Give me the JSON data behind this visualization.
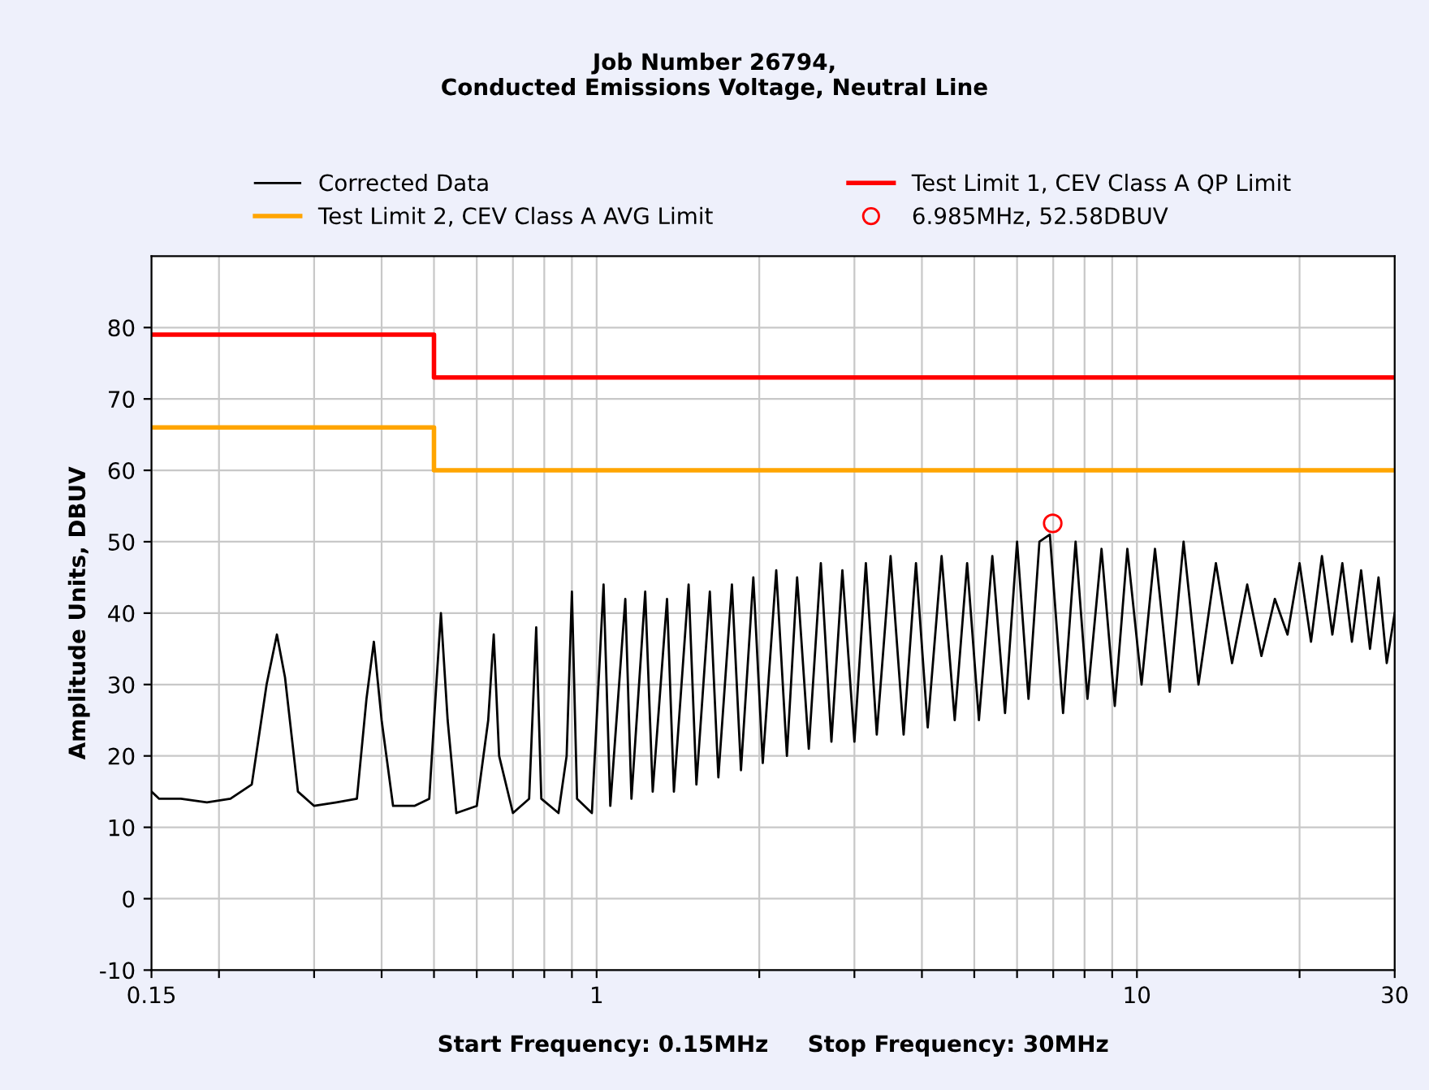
{
  "chart_data": {
    "type": "line",
    "title": "Job Number 26794,\nConducted Emissions Voltage, Neutral Line",
    "xlabel": "Start Frequency: 0.15MHz     Stop Frequency: 30MHz",
    "ylabel": "Amplitude Units, DBUV",
    "log": "x",
    "xlim": [
      0.15,
      30
    ],
    "xticks": [
      0.15,
      {
        "value": 0.2,
        "label": null
      },
      {
        "value": 0.3,
        "label": null
      },
      {
        "value": 0.4,
        "label": null
      },
      {
        "value": 0.5,
        "label": null
      },
      {
        "value": 0.6,
        "label": null
      },
      {
        "value": 0.7,
        "label": null
      },
      {
        "value": 0.8,
        "label": null
      },
      {
        "value": 0.9,
        "label": null
      },
      1,
      {
        "value": 2,
        "label": null
      },
      {
        "value": 3,
        "label": null
      },
      {
        "value": 4,
        "label": null
      },
      {
        "value": 5,
        "label": null
      },
      {
        "value": 6,
        "label": null
      },
      {
        "value": 7,
        "label": null
      },
      {
        "value": 8,
        "label": null
      },
      {
        "value": 9,
        "label": null
      },
      10,
      {
        "value": 20,
        "label": null
      },
      30
    ],
    "ylim": [
      -10,
      90
    ],
    "yticks": [
      -10,
      0,
      10,
      20,
      30,
      40,
      50,
      60,
      70,
      80
    ],
    "grid": true,
    "legend": "top",
    "series": [
      {
        "name": "Corrected Data",
        "color": "#000000",
        "x": [
          0.15,
          0.155,
          0.17,
          0.19,
          0.21,
          0.23,
          0.245,
          0.256,
          0.265,
          0.28,
          0.3,
          0.33,
          0.36,
          0.375,
          0.387,
          0.4,
          0.42,
          0.46,
          0.49,
          0.505,
          0.515,
          0.53,
          0.55,
          0.6,
          0.63,
          0.645,
          0.66,
          0.7,
          0.75,
          0.773,
          0.79,
          0.85,
          0.88,
          0.9,
          0.92,
          0.98,
          1.03,
          1.06,
          1.13,
          1.16,
          1.23,
          1.27,
          1.35,
          1.39,
          1.48,
          1.53,
          1.62,
          1.68,
          1.78,
          1.85,
          1.95,
          2.03,
          2.15,
          2.25,
          2.35,
          2.47,
          2.6,
          2.72,
          2.85,
          3.0,
          3.15,
          3.3,
          3.5,
          3.7,
          3.9,
          4.1,
          4.35,
          4.6,
          4.85,
          5.1,
          5.4,
          5.7,
          6.0,
          6.3,
          6.6,
          6.9,
          7.3,
          7.7,
          8.1,
          8.6,
          9.1,
          9.6,
          10.2,
          10.8,
          11.5,
          12.2,
          13,
          14,
          15,
          16,
          17,
          18,
          19,
          20,
          21,
          22,
          23,
          24,
          25,
          26,
          27,
          28,
          29,
          30
        ],
        "values": [
          15,
          14,
          14,
          13.5,
          14,
          16,
          30,
          37,
          31,
          15,
          13,
          13.5,
          14,
          28,
          36,
          25,
          13,
          13,
          14,
          30,
          40,
          25,
          12,
          13,
          25,
          37,
          20,
          12,
          14,
          38,
          14,
          12,
          20,
          43,
          14,
          12,
          44,
          13,
          42,
          14,
          43,
          15,
          42,
          15,
          44,
          16,
          43,
          17,
          44,
          18,
          45,
          19,
          46,
          20,
          45,
          21,
          47,
          22,
          46,
          22,
          47,
          23,
          48,
          23,
          47,
          24,
          48,
          25,
          47,
          25,
          48,
          26,
          50,
          28,
          50,
          51,
          26,
          50,
          28,
          49,
          27,
          49,
          30,
          49,
          29,
          50,
          30,
          47,
          33,
          44,
          34,
          42,
          37,
          47,
          36,
          48,
          37,
          47,
          36,
          46,
          35,
          45,
          33,
          40
        ]
      },
      {
        "name": "Test Limit 1, CEV Class A QP Limit",
        "color": "#ff0000",
        "x": [
          0.15,
          0.5,
          0.5,
          30
        ],
        "values": [
          79,
          79,
          73,
          73
        ]
      },
      {
        "name": "Test Limit 2, CEV Class A AVG Limit",
        "color": "#ffa500",
        "x": [
          0.15,
          0.5,
          0.5,
          30
        ],
        "values": [
          66,
          66,
          60,
          60
        ]
      },
      {
        "name": "6.985MHz, 52.58DBUV",
        "color": "#ff0000",
        "type": "scatter",
        "marker": "circle",
        "x": [
          6.985
        ],
        "values": [
          52.58
        ]
      }
    ]
  }
}
